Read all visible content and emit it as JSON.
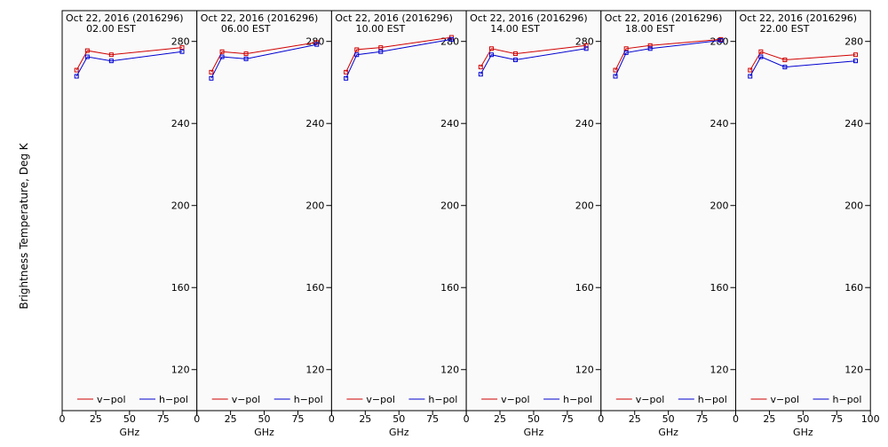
{
  "y_axis_label": "Brightness Temperature, Deg K",
  "legend": [
    {
      "label": "v−pol",
      "color": "#d00000"
    },
    {
      "label": "h−pol",
      "color": "#0000d0"
    }
  ],
  "colors": {
    "v_pol": "#d00000",
    "h_pol": "#0000d0",
    "background": "#fafafa"
  },
  "chart_data": [
    {
      "type": "line",
      "title": "Oct 22, 2016 (2016296)",
      "subtitle": "02.00 EST",
      "xlabel": "GHz",
      "ylabel": "Brightness Temperature, Deg K",
      "xlim": [
        0,
        100
      ],
      "ylim": [
        100,
        295
      ],
      "x_ticks": [
        0,
        25,
        50,
        75,
        100
      ],
      "y_ticks": [
        120,
        160,
        200,
        240,
        280
      ],
      "grid": false,
      "legend_position": "bottom",
      "x": [
        10.7,
        18.7,
        36.5,
        89.0
      ],
      "series": [
        {
          "name": "v−pol",
          "values": [
            266,
            275.5,
            273.5,
            277
          ]
        },
        {
          "name": "h−pol",
          "values": [
            263,
            272.5,
            270.5,
            275
          ]
        }
      ]
    },
    {
      "type": "line",
      "title": "Oct 22, 2016 (2016296)",
      "subtitle": "06.00 EST",
      "xlabel": "GHz",
      "ylabel": "Brightness Temperature, Deg K",
      "xlim": [
        0,
        100
      ],
      "ylim": [
        100,
        295
      ],
      "x_ticks": [
        0,
        25,
        50,
        75,
        100
      ],
      "y_ticks": [
        120,
        160,
        200,
        240,
        280
      ],
      "grid": false,
      "legend_position": "bottom",
      "x": [
        10.7,
        18.7,
        36.5,
        89.0
      ],
      "series": [
        {
          "name": "v−pol",
          "values": [
            265,
            275,
            274,
            279.5
          ]
        },
        {
          "name": "h−pol",
          "values": [
            262,
            272.5,
            271.5,
            278.5
          ]
        }
      ]
    },
    {
      "type": "line",
      "title": "Oct 22, 2016 (2016296)",
      "subtitle": "10.00 EST",
      "xlabel": "GHz",
      "ylabel": "Brightness Temperature, Deg K",
      "xlim": [
        0,
        100
      ],
      "ylim": [
        100,
        295
      ],
      "x_ticks": [
        0,
        25,
        50,
        75,
        100
      ],
      "y_ticks": [
        120,
        160,
        200,
        240,
        280
      ],
      "grid": false,
      "legend_position": "bottom",
      "x": [
        10.7,
        18.7,
        36.5,
        89.0
      ],
      "series": [
        {
          "name": "v−pol",
          "values": [
            265,
            276,
            277,
            282
          ]
        },
        {
          "name": "h−pol",
          "values": [
            262,
            273.5,
            275,
            281
          ]
        }
      ]
    },
    {
      "type": "line",
      "title": "Oct 22, 2016 (2016296)",
      "subtitle": "14.00 EST",
      "xlabel": "GHz",
      "ylabel": "Brightness Temperature, Deg K",
      "xlim": [
        0,
        100
      ],
      "ylim": [
        100,
        295
      ],
      "x_ticks": [
        0,
        25,
        50,
        75,
        100
      ],
      "y_ticks": [
        120,
        160,
        200,
        240,
        280
      ],
      "grid": false,
      "legend_position": "bottom",
      "x": [
        10.7,
        18.7,
        36.5,
        89.0
      ],
      "series": [
        {
          "name": "v−pol",
          "values": [
            267.5,
            276.5,
            274,
            278
          ]
        },
        {
          "name": "h−pol",
          "values": [
            264,
            273.5,
            271,
            276.5
          ]
        }
      ]
    },
    {
      "type": "line",
      "title": "Oct 22, 2016 (2016296)",
      "subtitle": "18.00 EST",
      "xlabel": "GHz",
      "ylabel": "Brightness Temperature, Deg K",
      "xlim": [
        0,
        100
      ],
      "ylim": [
        100,
        295
      ],
      "x_ticks": [
        0,
        25,
        50,
        75,
        100
      ],
      "y_ticks": [
        120,
        160,
        200,
        240,
        280
      ],
      "grid": false,
      "legend_position": "bottom",
      "x": [
        10.7,
        18.7,
        36.5,
        89.0
      ],
      "series": [
        {
          "name": "v−pol",
          "values": [
            266,
            276.5,
            278,
            281
          ]
        },
        {
          "name": "h−pol",
          "values": [
            263,
            274.5,
            276.5,
            280.5
          ]
        }
      ]
    },
    {
      "type": "line",
      "title": "Oct 22, 2016 (2016296)",
      "subtitle": "22.00 EST",
      "xlabel": "GHz",
      "ylabel": "Brightness Temperature, Deg K",
      "xlim": [
        0,
        100
      ],
      "ylim": [
        100,
        295
      ],
      "x_ticks": [
        0,
        25,
        50,
        75,
        100
      ],
      "y_ticks": [
        120,
        160,
        200,
        240,
        280
      ],
      "grid": false,
      "legend_position": "bottom",
      "x": [
        10.7,
        18.7,
        36.5,
        89.0
      ],
      "series": [
        {
          "name": "v−pol",
          "values": [
            266,
            275,
            271,
            273.5
          ]
        },
        {
          "name": "h−pol",
          "values": [
            263,
            272.5,
            267.5,
            270.5
          ]
        }
      ]
    }
  ]
}
